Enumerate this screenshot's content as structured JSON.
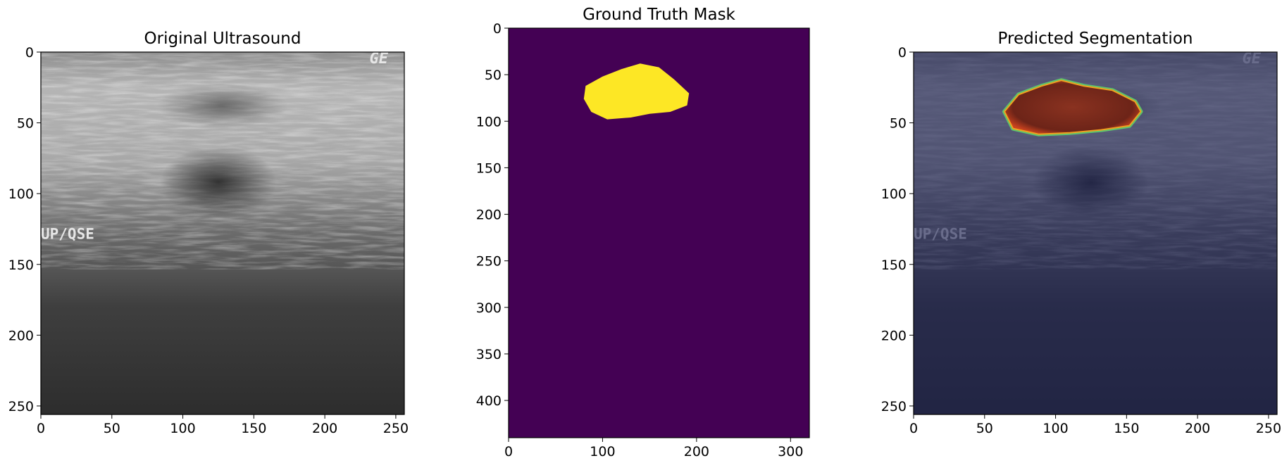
{
  "chart_data": [
    {
      "type": "image",
      "title": "Original Ultrasound",
      "xlim": [
        0,
        256
      ],
      "ylim": [
        256,
        0
      ],
      "xticks": [
        0,
        50,
        100,
        150,
        200,
        250
      ],
      "yticks": [
        0,
        50,
        100,
        150,
        200,
        250
      ],
      "xtick_labels": [
        "0",
        "50",
        "100",
        "150",
        "200",
        "250"
      ],
      "ytick_labels": [
        "0",
        "50",
        "100",
        "150",
        "200",
        "250"
      ],
      "image_text": [
        "GE",
        "UP/QSE"
      ],
      "colormap": "gray"
    },
    {
      "type": "heatmap",
      "title": "Ground Truth Mask",
      "xlim": [
        0,
        320
      ],
      "ylim": [
        440,
        0
      ],
      "xticks": [
        0,
        100,
        200,
        300
      ],
      "yticks": [
        0,
        50,
        100,
        150,
        200,
        250,
        300,
        350,
        400
      ],
      "xtick_labels": [
        "0",
        "100",
        "200",
        "300"
      ],
      "ytick_labels": [
        "0",
        "50",
        "100",
        "150",
        "200",
        "250",
        "300",
        "350",
        "400"
      ],
      "colormap": "viridis",
      "background_color": "#440154",
      "mask_color": "#fde725",
      "mask_region": {
        "x_range": [
          80,
          192
        ],
        "y_range": [
          38,
          98
        ],
        "outline": [
          [
            100,
            52
          ],
          [
            120,
            44
          ],
          [
            140,
            38
          ],
          [
            160,
            42
          ],
          [
            176,
            55
          ],
          [
            192,
            70
          ],
          [
            190,
            83
          ],
          [
            172,
            90
          ],
          [
            150,
            92
          ],
          [
            130,
            96
          ],
          [
            105,
            98
          ],
          [
            88,
            90
          ],
          [
            80,
            76
          ],
          [
            82,
            62
          ]
        ]
      }
    },
    {
      "type": "image",
      "title": "Predicted Segmentation",
      "xlim": [
        0,
        256
      ],
      "ylim": [
        256,
        0
      ],
      "xticks": [
        0,
        50,
        100,
        150,
        200,
        250
      ],
      "yticks": [
        0,
        50,
        100,
        150,
        200,
        250
      ],
      "xtick_labels": [
        "0",
        "50",
        "100",
        "150",
        "200",
        "250"
      ],
      "ytick_labels": [
        "0",
        "50",
        "100",
        "150",
        "200",
        "250"
      ],
      "image_text": [
        "GE",
        "UP/QSE"
      ],
      "overlay": "jet",
      "tint_color": "#1c2052",
      "segmentation_color": "#7a2a1c",
      "segmentation_outline": [
        [
          64,
          42
        ],
        [
          74,
          30
        ],
        [
          90,
          24
        ],
        [
          104,
          20
        ],
        [
          120,
          24
        ],
        [
          140,
          27
        ],
        [
          156,
          35
        ],
        [
          160,
          42
        ],
        [
          152,
          52
        ],
        [
          132,
          55
        ],
        [
          110,
          57
        ],
        [
          88,
          58
        ],
        [
          70,
          54
        ]
      ]
    }
  ]
}
